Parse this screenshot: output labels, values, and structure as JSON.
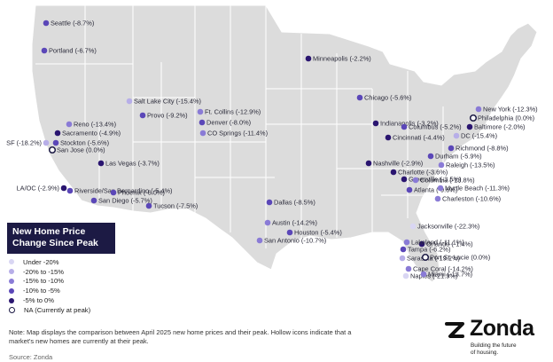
{
  "legend": {
    "title_line1": "New Home Price",
    "title_line2": "Change Since Peak",
    "items": [
      {
        "label": "Under -20%",
        "color": "#d9d6f3",
        "hollow": false
      },
      {
        "label": "-20% to -15%",
        "color": "#b7aee8",
        "hollow": false
      },
      {
        "label": "-15% to -10%",
        "color": "#8a7bd6",
        "hollow": false
      },
      {
        "label": "-10% to -5%",
        "color": "#5b47b8",
        "hollow": false
      },
      {
        "label": "-5% to 0%",
        "color": "#2a1570",
        "hollow": false
      },
      {
        "label": "NA (Currently at peak)",
        "color": "#1c1a44",
        "hollow": true
      }
    ]
  },
  "note": {
    "line1": "Note: Map displays the comparison between April 2025 new home prices and their peak. Hollow icons indicate that a",
    "line2": "market's new homes are currently at their peak."
  },
  "source": "Source: Zonda",
  "brand": {
    "name": "Zonda",
    "tagline_line1": "Building the future",
    "tagline_line2": "of housing."
  },
  "colors": {
    "under_-20": "#d9d6f3",
    "-20_to_-15": "#b7aee8",
    "-15_to_-10": "#8a7bd6",
    "-10_to_-5": "#5b47b8",
    "-5_to_0": "#2a1570",
    "at_peak_outline": "#1c1a44",
    "land": "#dcdcdc",
    "state_border": "#ffffff"
  },
  "markets": [
    {
      "label": "Seattle (-8.7%)",
      "value": -8.7
    },
    {
      "label": "Portland (-6.7%)",
      "value": -6.7
    },
    {
      "label": "Reno (-13.4%)",
      "value": -13.4
    },
    {
      "label": "Sacramento (-4.9%)",
      "value": -4.9
    },
    {
      "label": "SF (-18.2%)",
      "value": -18.2
    },
    {
      "label": "Stockton (-5.6%)",
      "value": -5.6
    },
    {
      "label": "San Jose (0.0%)",
      "value": 0.0,
      "at_peak": true
    },
    {
      "label": "Las Vegas (-3.7%)",
      "value": -3.7
    },
    {
      "label": "LA/OC (-2.9%)",
      "value": -2.9
    },
    {
      "label": "Riverside/San Bernardino (-5.4%)",
      "value": -5.4
    },
    {
      "label": "San Diego (-5.7%)",
      "value": -5.7
    },
    {
      "label": "Phoenix (-6.0%)",
      "value": -6.0
    },
    {
      "label": "Tucson (-7.5%)",
      "value": -7.5
    },
    {
      "label": "Salt Lake City (-15.4%)",
      "value": -15.4
    },
    {
      "label": "Provo (-9.2%)",
      "value": -9.2
    },
    {
      "label": "Ft. Collins (-12.9%)",
      "value": -12.9
    },
    {
      "label": "Denver (-8.0%)",
      "value": -8.0
    },
    {
      "label": "CO Springs (-11.4%)",
      "value": -11.4
    },
    {
      "label": "Dallas (-8.5%)",
      "value": -8.5
    },
    {
      "label": "Austin (-14.2%)",
      "value": -14.2
    },
    {
      "label": "Houston (-5.4%)",
      "value": -5.4
    },
    {
      "label": "San Antonio (-10.7%)",
      "value": -10.7
    },
    {
      "label": "Minneapolis (-2.2%)",
      "value": -2.2
    },
    {
      "label": "Chicago (-5.6%)",
      "value": -5.6
    },
    {
      "label": "Indianapolis (-3.2%)",
      "value": -3.2
    },
    {
      "label": "Columbus (-5.2%)",
      "value": -5.2
    },
    {
      "label": "Cincinnati (-4.4%)",
      "value": -4.4
    },
    {
      "label": "Nashville (-2.9%)",
      "value": -2.9
    },
    {
      "label": "Charlotte (-3.6%)",
      "value": -3.6
    },
    {
      "label": "Greenville (-3.5%)",
      "value": -3.5
    },
    {
      "label": "Atlanta (-9.6%)",
      "value": -9.6
    },
    {
      "label": "Columbia (-13.8%)",
      "value": -13.8
    },
    {
      "label": "Myrtle Beach (-11.3%)",
      "value": -11.3
    },
    {
      "label": "Charleston (-10.6%)",
      "value": -10.6
    },
    {
      "label": "Raleigh (-13.5%)",
      "value": -13.5
    },
    {
      "label": "Durham (-5.9%)",
      "value": -5.9
    },
    {
      "label": "Richmond (-8.8%)",
      "value": -8.8
    },
    {
      "label": "DC (-15.4%)",
      "value": -15.4
    },
    {
      "label": "Baltimore (-2.0%)",
      "value": -2.0
    },
    {
      "label": "Philadelphia (0.0%)",
      "value": 0.0,
      "at_peak": true
    },
    {
      "label": "New York (-12.3%)",
      "value": -12.3
    },
    {
      "label": "Jacksonville (-22.3%)",
      "value": -22.3
    },
    {
      "label": "Orlando (-1.4%)",
      "value": -1.4
    },
    {
      "label": "Lakeland (-11.1%)",
      "value": -11.1
    },
    {
      "label": "Tampa (-6.2%)",
      "value": -6.2
    },
    {
      "label": "Sarasota (-19.2%)",
      "value": -19.2
    },
    {
      "label": "Port St. Lucie (0.0%)",
      "value": 0.0,
      "at_peak": true
    },
    {
      "label": "Cape Coral (-14.2%)",
      "value": -14.2
    },
    {
      "label": "Naples (-21.9%)",
      "value": -21.9
    },
    {
      "label": "Miami (-13.7%)",
      "value": -13.7
    }
  ]
}
